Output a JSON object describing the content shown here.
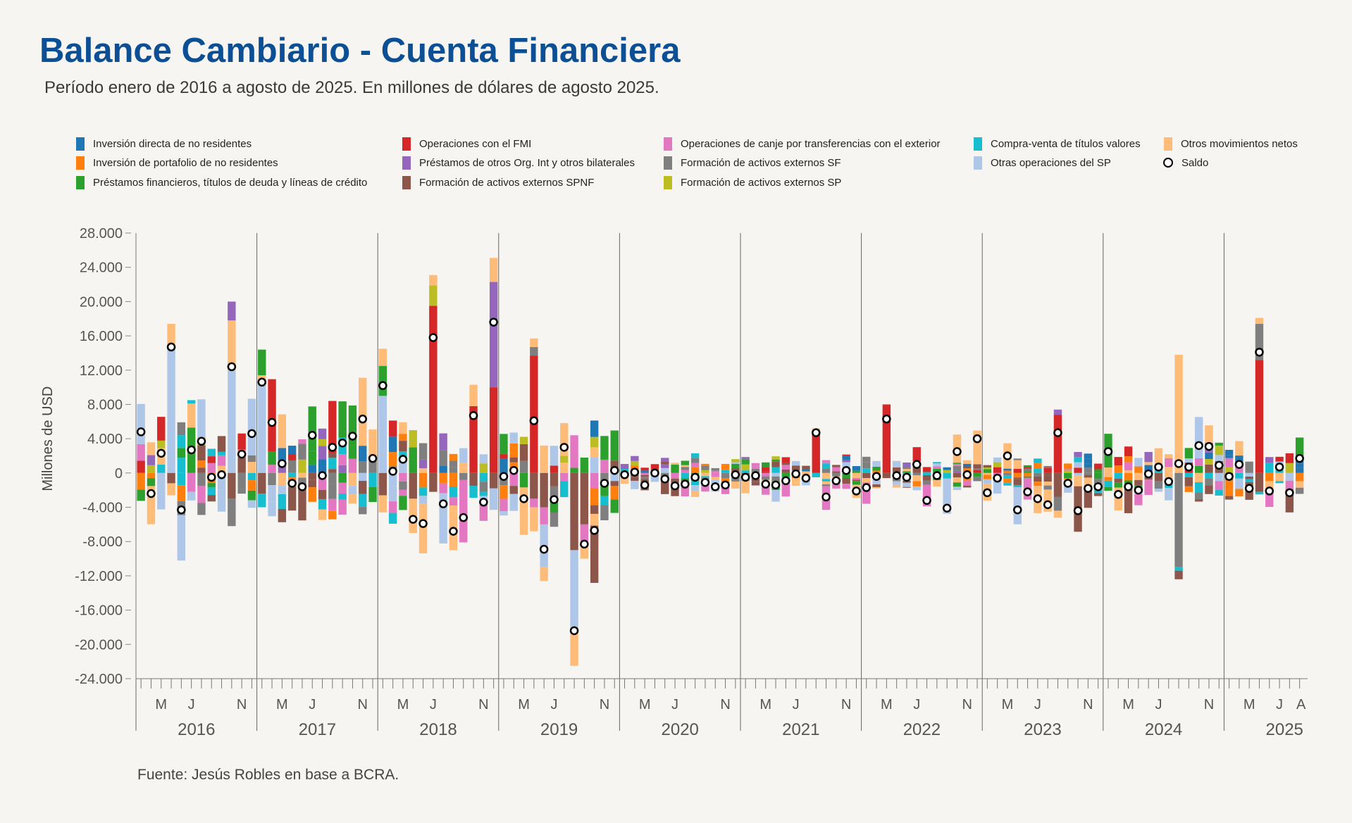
{
  "title": "Balance Cambiario - Cuenta Financiera",
  "subtitle": "Período enero de 2016 a agosto de 2025. En millones de dólares de agosto 2025.",
  "source": "Fuente: Jesús Robles en base a BCRA.",
  "legend": [
    {
      "label": "Inversión directa de no residentes",
      "color": "#1f77b4"
    },
    {
      "label": "Inversión de portafolio de no residentes",
      "color": "#ff7f0e"
    },
    {
      "label": "Préstamos financieros, títulos de deuda y líneas de crédito",
      "color": "#2ca02c"
    },
    {
      "label": "Operaciones con el FMI",
      "color": "#d62728"
    },
    {
      "label": "Préstamos de otros Org. Int y otros bilaterales",
      "color": "#9467bd"
    },
    {
      "label": "Formación de activos externos SPNF",
      "color": "#8c564b"
    },
    {
      "label": "Operaciones de canje por transferencias con el exterior",
      "color": "#e377c2"
    },
    {
      "label": "Formación de activos externos SF",
      "color": "#7f7f7f"
    },
    {
      "label": "Formación de activos externos SP",
      "color": "#bcbd22"
    },
    {
      "label": "Compra-venta de títulos valores",
      "color": "#17becf"
    },
    {
      "label": "Otras operaciones del SP",
      "color": "#aec7e8"
    },
    {
      "label": "Otros movimientos netos",
      "color": "#ffbb78"
    },
    {
      "label": "Saldo",
      "color": "#000000"
    }
  ],
  "chart_data": {
    "type": "bar",
    "stacked": true,
    "ylabel": "Millones de USD",
    "ylim": [
      -24000,
      28000
    ],
    "yticks": [
      28000,
      24000,
      20000,
      16000,
      12000,
      8000,
      4000,
      0,
      -4000,
      -8000,
      -12000,
      -16000,
      -20000,
      -24000
    ],
    "ytick_labels": [
      "28.000",
      "24.000",
      "20.000",
      "16.000",
      "12.000",
      "8.000",
      "4.000",
      "0",
      "-4.000",
      "-8.000",
      "-12.000",
      "-16.000",
      "-20.000",
      "-24.000"
    ],
    "year_labels": [
      "2016",
      "2017",
      "2018",
      "2019",
      "2020",
      "2021",
      "2022",
      "2023",
      "2024",
      "2025"
    ],
    "month_tick_labels": [
      "M",
      "J",
      "N"
    ],
    "last_year_extra_labels": [
      "J",
      "A"
    ],
    "n_months": 116,
    "series_names": [
      "Inversión directa de no residentes",
      "Inversión de portafolio de no residentes",
      "Préstamos financieros, títulos de deuda y líneas de crédito",
      "Operaciones con el FMI",
      "Préstamos de otros Org. Int y otros bilaterales",
      "Formación de activos externos SPNF",
      "Operaciones de canje por transferencias con el exterior",
      "Formación de activos externos SF",
      "Formación de activos externos SP",
      "Compra-venta de títulos valores",
      "Otras operaciones del SP",
      "Otros movimientos netos"
    ],
    "saldo": [
      4800,
      -2400,
      2300,
      14700,
      -4300,
      2700,
      3700,
      -500,
      -200,
      12400,
      2200,
      4600,
      10600,
      5900,
      1100,
      -1200,
      -1600,
      4400,
      -300,
      3000,
      3500,
      4300,
      6300,
      1700,
      10200,
      200,
      1600,
      -5400,
      -5900,
      15800,
      -3600,
      -6800,
      -5200,
      6700,
      -3400,
      17600,
      -400,
      300,
      -3000,
      6100,
      -8900,
      -3100,
      3000,
      -18400,
      -8300,
      -6700,
      -1200,
      300,
      -200,
      100,
      -1400,
      0,
      -700,
      -1500,
      -1300,
      -500,
      -1100,
      -1600,
      -1400,
      -200,
      -500,
      -300,
      -1300,
      -1400,
      -900,
      -100,
      -600,
      4700,
      -2800,
      -900,
      300,
      -2100,
      -1700,
      -400,
      6300,
      -300,
      -500,
      1000,
      -3200,
      -300,
      -4100,
      2500,
      -200,
      4000,
      -2300,
      -600,
      2000,
      -4300,
      -2200,
      -3000,
      -3700,
      4700,
      -1200,
      -4400,
      -1800,
      -1600,
      2500,
      -2500,
      -1600,
      -2000,
      -100,
      700,
      -1000,
      1100,
      700,
      3200,
      3100,
      900,
      -400,
      1000,
      -1800,
      14100,
      -2100,
      700,
      -2300,
      1700
    ]
  }
}
